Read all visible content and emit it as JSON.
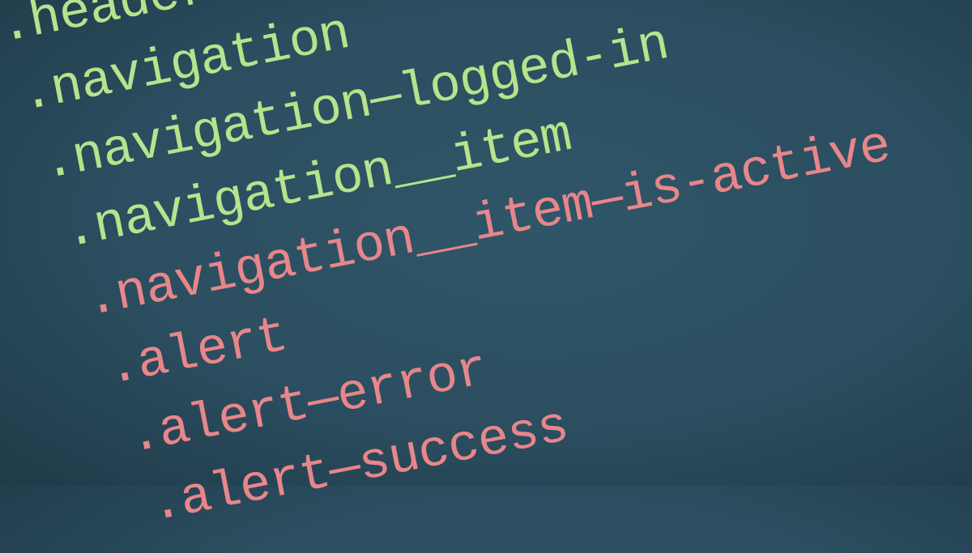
{
  "code": {
    "lines": [
      {
        "text": ".header",
        "color": "#b6e38c"
      },
      {
        "text": ".navigation",
        "color": "#b6e38c"
      },
      {
        "text": ".navigation—logged-in",
        "color": "#b6e38c"
      },
      {
        "text": ".navigation__item",
        "color": "#b6e38c"
      },
      {
        "text": ".navigation__item—is-active",
        "color": "#e8868a"
      },
      {
        "text": ".alert",
        "color": "#e8868a"
      },
      {
        "text": ".alert—error",
        "color": "#e8868a"
      },
      {
        "text": ".alert—success",
        "color": "#e8868a"
      }
    ]
  }
}
